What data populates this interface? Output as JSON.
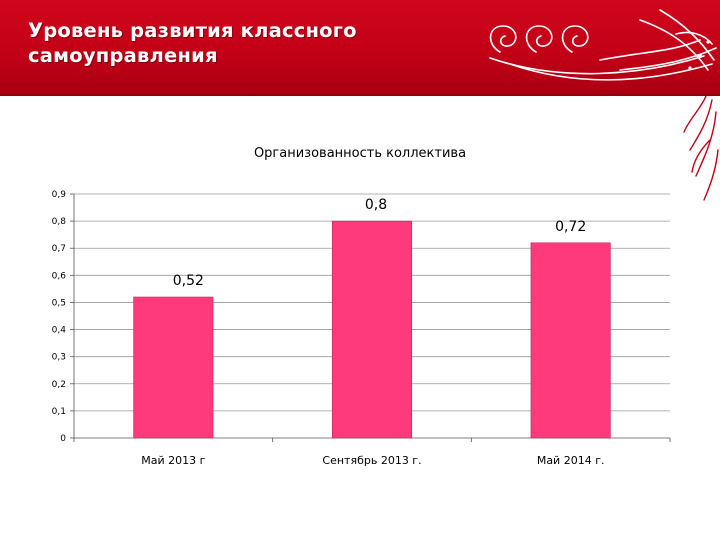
{
  "slide": {
    "title_line1": "Уровень развития классного",
    "title_line2": "самоуправления"
  },
  "colors": {
    "header": "#c10016",
    "ornament": "#ffffff",
    "bar": "#ff3a7c",
    "bar_border": "#c8245a"
  },
  "chart_data": {
    "type": "bar",
    "title": "Организованность коллектива",
    "categories": [
      "Май 2013 г",
      "Сентябрь 2013 г.",
      "Май 2014 г."
    ],
    "values": [
      0.52,
      0.8,
      0.72
    ],
    "data_labels": [
      "0,52",
      "0,8",
      "0,72"
    ],
    "y_ticks": [
      "0",
      "0,1",
      "0,2",
      "0,3",
      "0,4",
      "0,5",
      "0,6",
      "0,7",
      "0,8",
      "0,9"
    ],
    "ylim": [
      0,
      0.9
    ],
    "grid": true,
    "legend": "none"
  }
}
